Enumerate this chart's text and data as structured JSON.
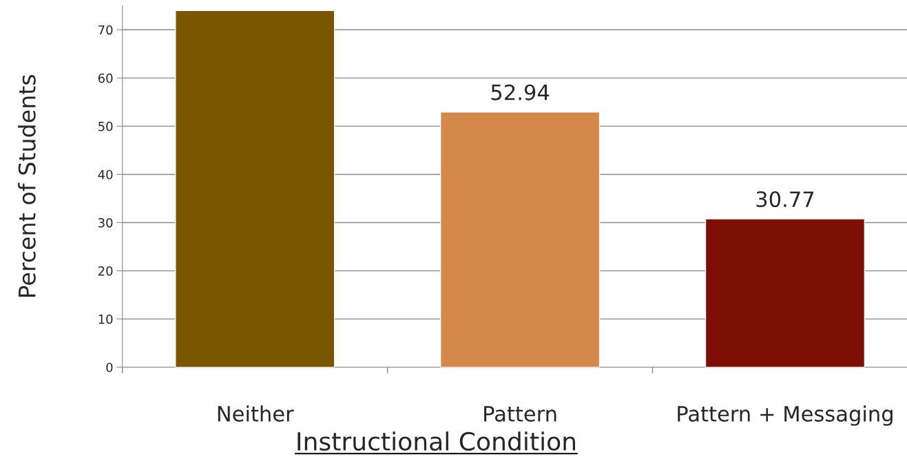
{
  "chart_data": {
    "type": "bar",
    "categories": [
      "Neither",
      "Pattern",
      "Pattern + Messaging"
    ],
    "values": [
      74,
      52.94,
      30.77
    ],
    "colors": [
      "#7a5600",
      "#d4894a",
      "#7d0f05"
    ],
    "value_labels": [
      null,
      "52.94",
      "30.77"
    ],
    "xlabel": "Instructional Condition",
    "ylabel": "Percent of Students",
    "ylim": [
      0,
      75
    ],
    "yticks": [
      0,
      10,
      20,
      30,
      40,
      50,
      60,
      70
    ],
    "grid": "y"
  }
}
